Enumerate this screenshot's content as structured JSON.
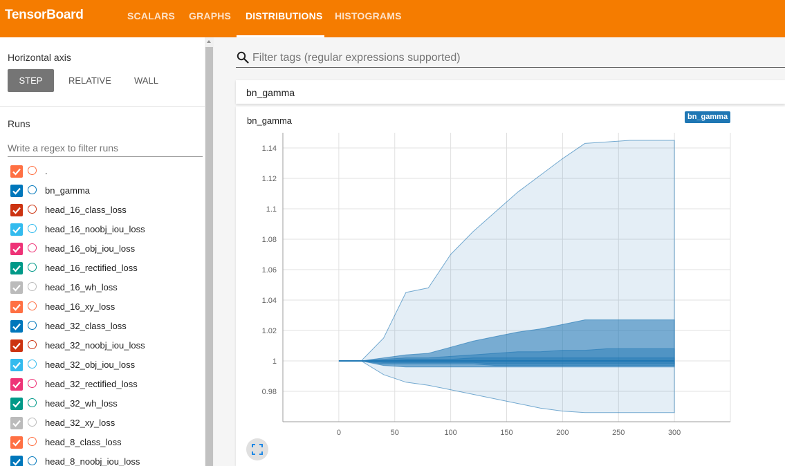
{
  "header": {
    "brand": "TensorBoard",
    "tabs": [
      {
        "label": "SCALARS"
      },
      {
        "label": "GRAPHS"
      },
      {
        "label": "DISTRIBUTIONS"
      },
      {
        "label": "HISTOGRAMS"
      }
    ],
    "active_tab": "DISTRIBUTIONS"
  },
  "sidebar": {
    "horizontal_axis_label": "Horizontal axis",
    "axis_options": [
      "STEP",
      "RELATIVE",
      "WALL"
    ],
    "selected_axis": "STEP",
    "runs_label": "Runs",
    "runs_filter_placeholder": "Write a regex to filter runs",
    "runs": [
      {
        "name": ".",
        "color": "#ff7043",
        "checked": true
      },
      {
        "name": "bn_gamma",
        "color": "#0077bb",
        "checked": true
      },
      {
        "name": "head_16_class_loss",
        "color": "#cc3311",
        "checked": true
      },
      {
        "name": "head_16_noobj_iou_loss",
        "color": "#33bbee",
        "checked": true
      },
      {
        "name": "head_16_obj_iou_loss",
        "color": "#ee3377",
        "checked": true
      },
      {
        "name": "head_16_rectified_loss",
        "color": "#009988",
        "checked": true
      },
      {
        "name": "head_16_wh_loss",
        "color": "#bbbbbb",
        "checked": true
      },
      {
        "name": "head_16_xy_loss",
        "color": "#ff7043",
        "checked": true
      },
      {
        "name": "head_32_class_loss",
        "color": "#0077bb",
        "checked": true
      },
      {
        "name": "head_32_noobj_iou_loss",
        "color": "#cc3311",
        "checked": true
      },
      {
        "name": "head_32_obj_iou_loss",
        "color": "#33bbee",
        "checked": true
      },
      {
        "name": "head_32_rectified_loss",
        "color": "#ee3377",
        "checked": true
      },
      {
        "name": "head_32_wh_loss",
        "color": "#009988",
        "checked": true
      },
      {
        "name": "head_32_xy_loss",
        "color": "#bbbbbb",
        "checked": true
      },
      {
        "name": "head_8_class_loss",
        "color": "#ff7043",
        "checked": true
      },
      {
        "name": "head_8_noobj_iou_loss",
        "color": "#0077bb",
        "checked": true
      }
    ]
  },
  "main": {
    "tag_filter_placeholder": "Filter tags (regular expressions supported)",
    "group_title": "bn_gamma",
    "chart_title": "bn_gamma",
    "run_badge": "bn_gamma",
    "icons": {
      "search": "search-icon",
      "expand": "fullscreen-icon",
      "checkbox": "checkmark-icon"
    }
  },
  "chart_data": {
    "type": "area",
    "xlabel": "",
    "ylabel": "",
    "xlim": [
      -50,
      350
    ],
    "ylim": [
      0.96,
      1.15
    ],
    "x_ticks": [
      0,
      50,
      100,
      150,
      200,
      250,
      300
    ],
    "y_ticks": [
      0.98,
      1,
      1.02,
      1.04,
      1.06,
      1.08,
      1.1,
      1.12,
      1.14
    ],
    "grid": true,
    "color": "#1f77b4",
    "x": [
      0,
      20,
      40,
      60,
      80,
      100,
      120,
      140,
      160,
      180,
      200,
      220,
      240,
      260,
      280,
      300
    ],
    "bands": [
      {
        "lower": [
          1.0,
          1.0,
          0.991,
          0.986,
          0.984,
          0.981,
          0.978,
          0.975,
          0.972,
          0.969,
          0.967,
          0.966,
          0.966,
          0.966,
          0.966,
          0.966
        ],
        "upper": [
          1.0,
          1.0,
          1.015,
          1.045,
          1.048,
          1.07,
          1.085,
          1.098,
          1.111,
          1.122,
          1.133,
          1.143,
          1.144,
          1.145,
          1.145,
          1.145
        ]
      },
      {
        "lower": [
          1.0,
          1.0,
          0.997,
          0.996,
          0.996,
          0.996,
          0.996,
          0.996,
          0.996,
          0.996,
          0.996,
          0.996,
          0.996,
          0.996,
          0.996,
          0.996
        ],
        "upper": [
          1.0,
          1.0,
          1.002,
          1.004,
          1.005,
          1.009,
          1.013,
          1.016,
          1.019,
          1.021,
          1.024,
          1.027,
          1.027,
          1.027,
          1.027,
          1.027
        ]
      },
      {
        "lower": [
          1.0,
          1.0,
          0.998,
          0.998,
          0.998,
          0.998,
          0.998,
          0.997,
          0.997,
          0.997,
          0.997,
          0.997,
          0.997,
          0.997,
          0.997,
          0.997
        ],
        "upper": [
          1.0,
          1.0,
          1.001,
          1.002,
          1.002,
          1.003,
          1.004,
          1.005,
          1.006,
          1.006,
          1.007,
          1.007,
          1.008,
          1.008,
          1.008,
          1.008
        ]
      },
      {
        "lower": [
          1.0,
          1.0,
          0.999,
          0.999,
          0.999,
          0.999,
          0.999,
          0.998,
          0.998,
          0.998,
          0.998,
          0.998,
          0.998,
          0.998,
          0.998,
          0.998
        ],
        "upper": [
          1.0,
          1.0,
          1.0,
          1.001,
          1.001,
          1.001,
          1.002,
          1.002,
          1.002,
          1.002,
          1.002,
          1.002,
          1.002,
          1.002,
          1.002,
          1.002
        ]
      }
    ],
    "median": [
      1.0,
      1.0,
      1.0,
      1.0,
      1.0,
      1.0,
      1.0,
      1.0,
      1.0,
      1.0,
      1.0,
      1.0,
      1.0,
      1.0,
      1.0,
      1.0
    ]
  }
}
